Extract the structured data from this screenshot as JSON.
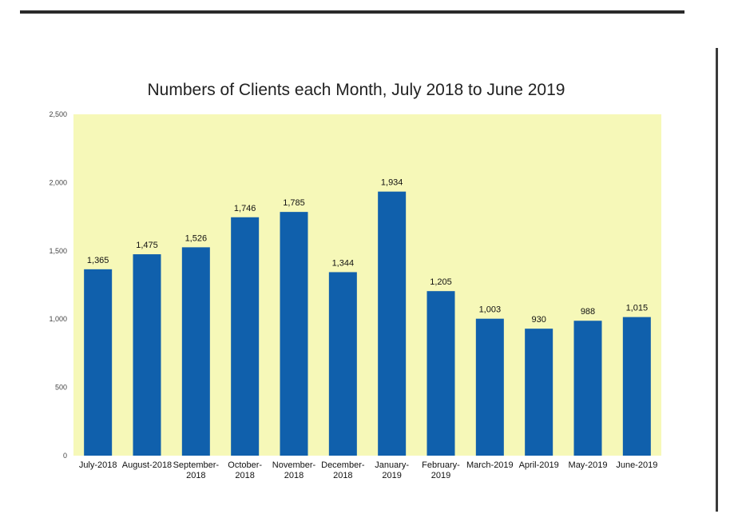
{
  "chart_data": {
    "type": "bar",
    "title": "Numbers of Clients each Month, July 2018 to June 2019",
    "categories": [
      [
        "July-2018"
      ],
      [
        "August-2018"
      ],
      [
        "September-",
        "2018"
      ],
      [
        "October-",
        "2018"
      ],
      [
        "November-",
        "2018"
      ],
      [
        "December-",
        "2018"
      ],
      [
        "January-",
        "2019"
      ],
      [
        "February-",
        "2019"
      ],
      [
        "March-2019"
      ],
      [
        "April-2019"
      ],
      [
        "May-2019"
      ],
      [
        "June-2019"
      ]
    ],
    "values": [
      1365,
      1475,
      1526,
      1746,
      1785,
      1344,
      1934,
      1205,
      1003,
      930,
      988,
      1015
    ],
    "data_labels": [
      "1,365",
      "1,475",
      "1,526",
      "1,746",
      "1,785",
      "1,344",
      "1,934",
      "1,205",
      "1,003",
      "930",
      "988",
      "1,015"
    ],
    "y_ticks": [
      "0",
      "500",
      "1,000",
      "1,500",
      "2,000",
      "2,500"
    ],
    "y_tick_values": [
      0,
      500,
      1000,
      1500,
      2000,
      2500
    ],
    "ylim": [
      0,
      2500
    ],
    "grid": false,
    "legend": "none",
    "colors": {
      "bar": "#1060ac",
      "plot_background": "#f6f8b8"
    }
  }
}
